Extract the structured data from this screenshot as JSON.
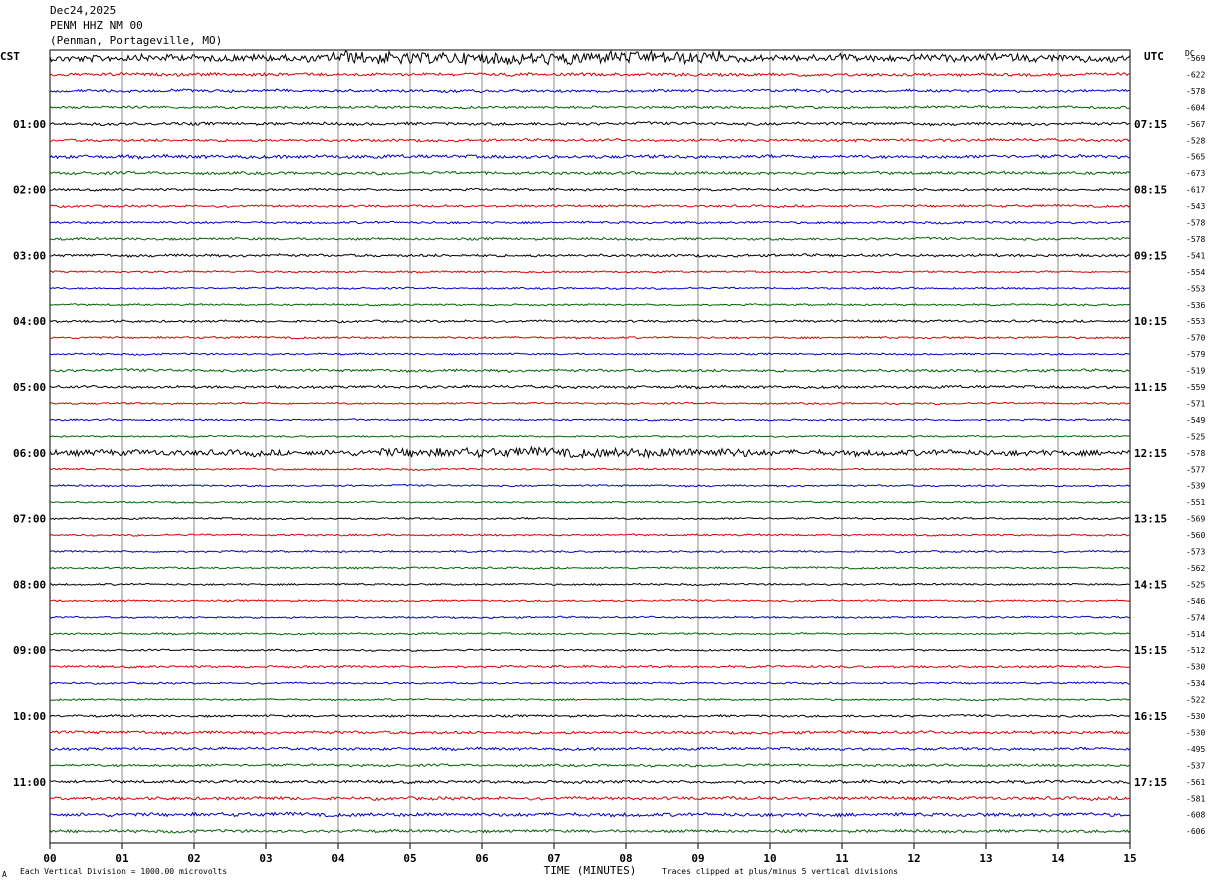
{
  "header": {
    "date": "Dec24,2025",
    "station": "PENM HHZ NM 00",
    "location": "(Penman, Portageville, MO)"
  },
  "left_zone": "CST",
  "right_zone": "UTC",
  "dc_label": "DC",
  "footer": {
    "vertical_division": "Each Vertical Division = 1000.00 microvolts",
    "clip_note": "Traces clipped at plus/minus 5 vertical divisions",
    "corner_mark": "A"
  },
  "chart_data": {
    "type": "line",
    "xlabel": "TIME (MINUTES)",
    "xlim": [
      0,
      15
    ],
    "x_ticks": [
      "00",
      "01",
      "02",
      "03",
      "04",
      "05",
      "06",
      "07",
      "08",
      "09",
      "10",
      "11",
      "12",
      "13",
      "14",
      "15"
    ],
    "trace_colors": [
      "#000000",
      "#dd0000",
      "#0000cc",
      "#006600"
    ],
    "hour_labels_left": [
      "01:00",
      "02:00",
      "03:00",
      "04:00",
      "05:00",
      "06:00",
      "07:00",
      "08:00",
      "09:00",
      "10:00",
      "11:00"
    ],
    "hour_labels_right": [
      "07:15",
      "08:15",
      "09:15",
      "10:15",
      "11:15",
      "12:15",
      "13:15",
      "14:15",
      "15:15",
      "16:15",
      "17:15"
    ],
    "dc_offsets": [
      -569,
      -622,
      -578,
      -604,
      -567,
      -528,
      -565,
      -673,
      -617,
      -543,
      -578,
      -578,
      -541,
      -554,
      -553,
      -536,
      -553,
      -570,
      -579,
      -519,
      -559,
      -571,
      -549,
      -525,
      -578,
      -577,
      -539,
      -551,
      -569,
      -560,
      -573,
      -562,
      -525,
      -546,
      -574,
      -514,
      -512,
      -530,
      -534,
      -522,
      -530,
      -530,
      -495,
      -537,
      -561,
      -581,
      -608,
      -606
    ],
    "trace_activity": [
      3.2,
      1.4,
      1.2,
      1.1,
      1.3,
      1.2,
      1.5,
      1.3,
      1.0,
      1.0,
      1.0,
      1.1,
      1.2,
      0.8,
      0.8,
      0.8,
      1.0,
      0.9,
      0.8,
      1.2,
      1.2,
      0.8,
      0.8,
      0.7,
      2.6,
      0.8,
      0.8,
      0.7,
      0.8,
      0.8,
      0.8,
      0.8,
      0.8,
      0.8,
      0.8,
      0.8,
      0.8,
      1.0,
      0.8,
      0.8,
      1.0,
      1.3,
      1.2,
      1.1,
      1.3,
      1.4,
      1.6,
      1.3
    ]
  }
}
